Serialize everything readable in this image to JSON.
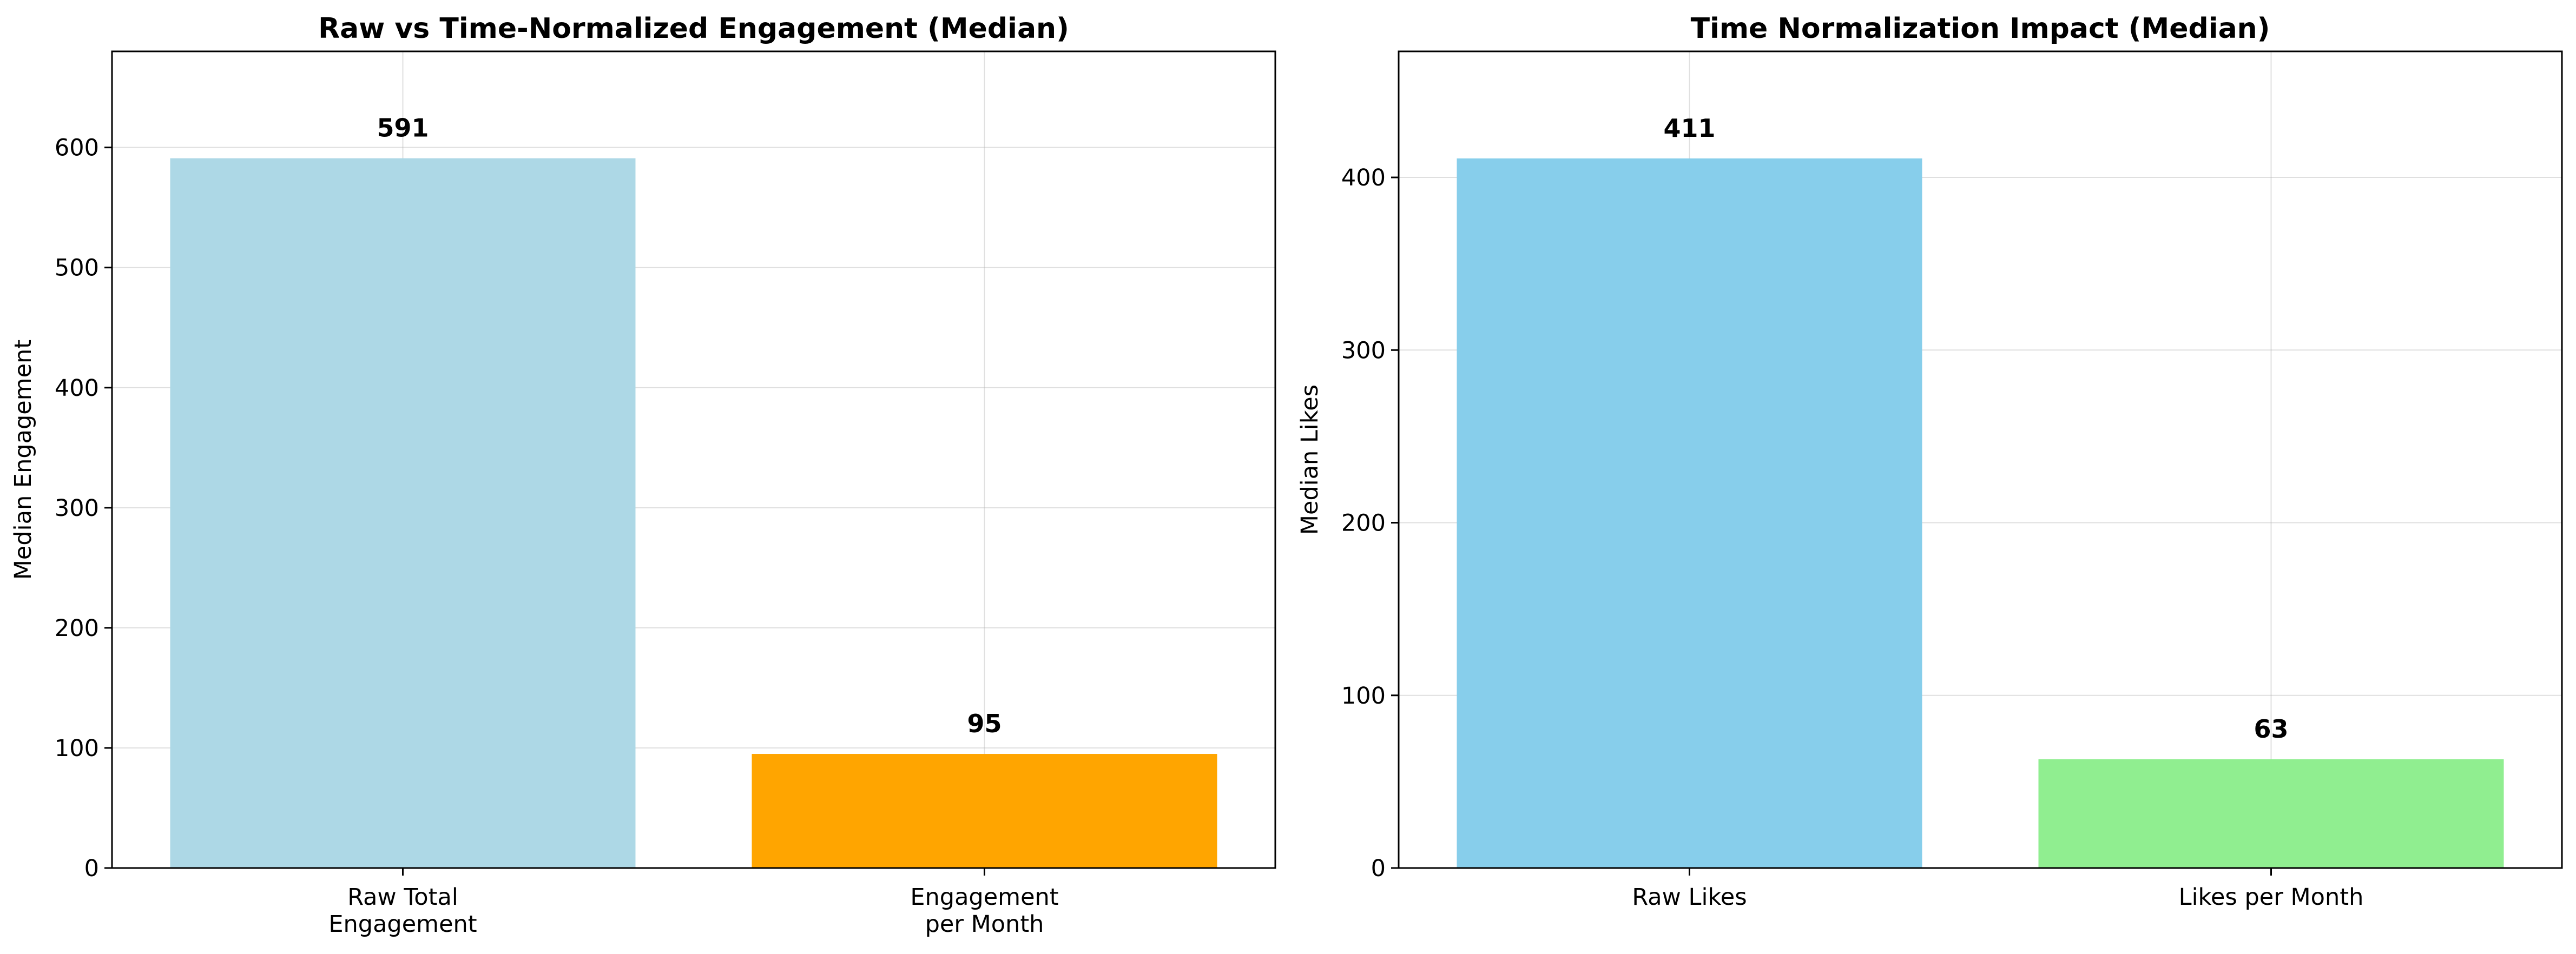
{
  "chart_data": [
    {
      "type": "bar",
      "title": "Raw vs Time-Normalized Engagement (Median)",
      "xlabel": "",
      "ylabel": "Median Engagement",
      "categories": [
        "Raw Total\nEngagement",
        "Engagement\nper Month"
      ],
      "values": [
        591,
        95
      ],
      "data_labels": [
        "591",
        "95"
      ],
      "colors": [
        "#add8e6",
        "#ffa500"
      ],
      "ylim": [
        0,
        680
      ],
      "yticks": [
        0,
        100,
        200,
        300,
        400,
        500,
        600
      ],
      "grid": true
    },
    {
      "type": "bar",
      "title": "Time Normalization Impact (Median)",
      "xlabel": "",
      "ylabel": "Median Likes",
      "categories": [
        "Raw Likes",
        "Likes per Month"
      ],
      "values": [
        411,
        63
      ],
      "data_labels": [
        "411",
        "63"
      ],
      "colors": [
        "#87ceeb",
        "#90ee90"
      ],
      "ylim": [
        0,
        473
      ],
      "yticks": [
        0,
        100,
        200,
        300,
        400
      ],
      "grid": true
    }
  ]
}
